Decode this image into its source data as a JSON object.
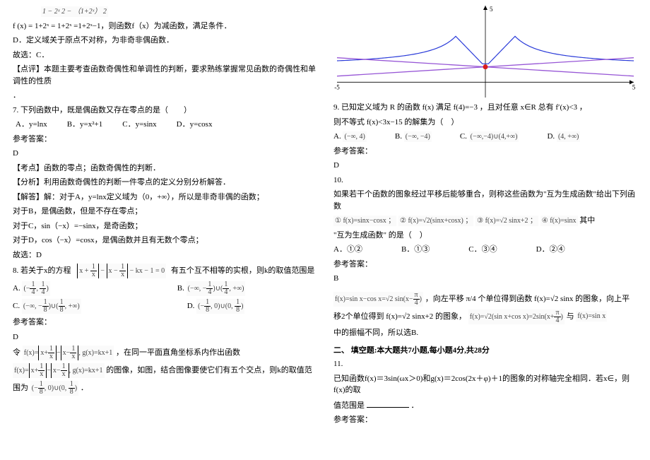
{
  "left": {
    "eq_line": "f (x) = 1+2ˣ =   1+2ˣ   =1+2ˣ−1，则函数f（x）为减函数，满足条件．",
    "eq_top": "1 − 2ˣ  2 − （1+2ˣ）     2",
    "d_line": "D．定义域关于原点不对称，为非奇非偶函数．",
    "choose": "故选：C．",
    "comment": "【点评】本题主要考查函数奇偶性和单调性的判断，要求熟练掌握常见函数的奇偶性和单调性的性质",
    "dot": "．",
    "q7": "7. 下列函数中，既是偶函数又存在零点的是（　　）",
    "q7_opts": {
      "a": "A．y=lnx",
      "b": "B．y=x²+1",
      "c": "C．y=sinx",
      "d": "D．y=cosx"
    },
    "ans_label": "参考答案：",
    "ans7": "D",
    "kaodian": "【考点】函数的零点；函数奇偶性的判断．",
    "fenxi": "【分析】利用函数奇偶性的判断一件零点的定义分别分析解答．",
    "jieda": "【解答】解：对于A，y=lnx定义域为（0，+∞），所以是非奇非偶的函数；",
    "jb": "对于B，是偶函数，但是不存在零点；",
    "jc": "对于C，sin（−x）=−sinx，是奇函数；",
    "jd": "对于D，cos（−x）=cosx，是偶函数并且有无数个零点；",
    "choose2": "故选：D",
    "q8": "8. 若关于x的方程",
    "q8_mid": "有五个互不相等的实根，则k的取值范围是",
    "q8_eq": "|x + 1/x| − |x − 1/x| − kx − 1 = 0",
    "q8a": "(−1/4, 1/4)",
    "q8b": "(−∞, −1/4)∪(1/4, +∞)",
    "q8c": "(−∞, −1/8)∪(1/8, +∞)",
    "q8d": "(−1/8, 0)∪(0, 1/8)",
    "ans8": "D",
    "ling": "令",
    "ling_eq": "f(x)=|x+1/x|−|x−1/x|, g(x)=kx+1",
    "ling_tail": "，在同一平面直角坐标系内作出函数",
    "ling2_eq": "f(x)=|x+1/x|−|x−1/x|, g(x)=kx+1",
    "ling2_tail": "的图像，如图，结合图像要使它们有五个交点，则k的取值范",
    "weiru": "围为",
    "weiru_eq": "(−1/8, 0)∪(0, 1/8)",
    "weiru_dot": "．"
  },
  "right": {
    "chart": {
      "xrange": [
        -5,
        5
      ],
      "yrange": [
        -1,
        5
      ],
      "axis_color": "#000000",
      "blue_curve": "#2a3bd9",
      "purple_line": "#9756d6",
      "red_dot": "#d91c1c",
      "red_dot_pos": [
        0,
        1
      ],
      "x_ticks": [
        -5,
        5
      ],
      "y_ticks": [
        5
      ]
    },
    "q9": "9. 已知定义域为 R 的函数 f(x) 满足 f(4)=−3 ，且对任意 x∈R 总有 f′(x)<3 ，",
    "q9b": "则不等式 f(x)<3x−15 的解集为（　）",
    "q9_opts": {
      "a": "(−∞, 4)",
      "b": "(−∞, −4)",
      "c": "(−∞,−4)∪(4,+∞)",
      "d": "(4, +∞)"
    },
    "ans_label": "参考答案：",
    "ans9": "D",
    "q10a": "10.",
    "q10b": "如果若干个函数的图象经过平移后能够重合，则称这些函数为\"互为生成函数\"给出下列函数",
    "q10c_1": "① f(x)=sinx−cosx ；",
    "q10c_2": "② f(x)=√2(sinx+cosx) ；",
    "q10c_3": "③ f(x)=√2 sinx+2 ；",
    "q10c_4": "④ f(x)=sinx",
    "q10c_tail": "其中",
    "q10d": "\"互为生成函数\" 的是（　）",
    "q10_opts": {
      "a": "A．①②",
      "b": "B．①③",
      "c": "C．③④",
      "d": "D．②④"
    },
    "ans10": "B",
    "exp1_a": "f(x)=sinx−cosx=√2 sin(x−π/4)",
    "exp1_b": "，向左平移 π/4 个单位得到函数 f(x)=√2 sinx 的图象，向上平",
    "exp2_a": "移2个单位得到 f(x)=√2 sinx+2 的图象，",
    "exp2_b": "f(x)=√2(sinx+cosx)=2sin(x+π/4) 与 f(x)=sinx",
    "exp3": "中的振幅不同，所以选B.",
    "sec2": "二、 填空题:本大题共7小题,每小题4分,共28分",
    "q11a": "11.",
    "q11b": "已知函数f(x)＝3sin(ωx＞0)和g(x)＝2cos(2x＋φ)＋1的图象的对称轴完全相同．若x∈，则f(x)的取",
    "q11c": "值范围是",
    "q11c_tail": "．"
  }
}
